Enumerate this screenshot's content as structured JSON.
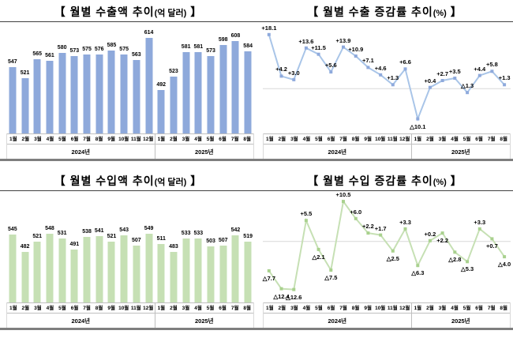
{
  "page": {
    "background": "#ffffff"
  },
  "chart_data": [
    {
      "id": "export-amount",
      "type": "bar",
      "title": "【 월별 수출액 추이(억 달러) 】",
      "title_main": "【 월별 수출액 추이",
      "title_unit": "(억 달러)",
      "title_close": " 】",
      "categories": [
        "1월",
        "2월",
        "3월",
        "4월",
        "5월",
        "6월",
        "7월",
        "8월",
        "9월",
        "10월",
        "11월",
        "12월",
        "1월",
        "2월",
        "3월",
        "4월",
        "5월",
        "6월",
        "7월",
        "8월"
      ],
      "year_groups": [
        {
          "label": "2024년",
          "count": 12
        },
        {
          "label": "2025년",
          "count": 8
        }
      ],
      "values": [
        547,
        521,
        565,
        561,
        580,
        573,
        575,
        576,
        585,
        575,
        563,
        614,
        492,
        523,
        581,
        581,
        573,
        598,
        608,
        584
      ],
      "value_labels": [
        "547",
        "521",
        "565",
        "561",
        "580",
        "573",
        "575",
        "576",
        "585",
        "575",
        "563",
        "614",
        "492",
        "523",
        "581",
        "581",
        "573",
        "598",
        "608",
        "584"
      ],
      "bar_color": "#8EA9DB",
      "ylim": [
        390,
        650
      ],
      "grid": false
    },
    {
      "id": "export-growth",
      "type": "line",
      "title": "【 월별 수출 증감률 추이(%) 】",
      "title_main": "【 월별 수출 증감률 추이",
      "title_unit": "(%)",
      "title_close": " 】",
      "categories": [
        "1월",
        "2월",
        "3월",
        "4월",
        "5월",
        "6월",
        "7월",
        "8월",
        "9월",
        "10월",
        "11월",
        "12월",
        "1월",
        "2월",
        "3월",
        "4월",
        "5월",
        "6월",
        "7월",
        "8월"
      ],
      "year_groups": [
        {
          "label": "2024년",
          "count": 12
        },
        {
          "label": "2025년",
          "count": 8
        }
      ],
      "values": [
        18.1,
        4.2,
        3.0,
        13.6,
        11.5,
        5.6,
        13.9,
        10.9,
        7.1,
        4.6,
        1.3,
        6.6,
        -10.1,
        0.4,
        2.7,
        3.5,
        -1.3,
        4.4,
        5.8,
        1.3
      ],
      "value_labels": [
        "+18.1",
        "+4.2",
        "+3.0",
        "+13.6",
        "+11.5",
        "+5.6",
        "+13.9",
        "+10.9",
        "+7.1",
        "+4.6",
        "+1.3",
        "+6.6",
        "△10.1",
        "+0.4",
        "+2.7",
        "+3.5",
        "△1.3",
        "+4.4",
        "+5.8",
        "+1.3"
      ],
      "label_below": [
        12
      ],
      "line_color": "#A9C5E8",
      "marker_color": "#8FAADC",
      "zero_line": true,
      "zero_line_color": "#D9D9D9",
      "ylim": [
        -15,
        22
      ],
      "grid": false
    },
    {
      "id": "import-amount",
      "type": "bar",
      "title": "【 월별 수입액 추이(억 달러) 】",
      "title_main": "【 월별 수입액 추이",
      "title_unit": "(억 달러)",
      "title_close": " 】",
      "categories": [
        "1월",
        "2월",
        "3월",
        "4월",
        "5월",
        "6월",
        "7월",
        "8월",
        "9월",
        "10월",
        "11월",
        "12월",
        "1월",
        "2월",
        "3월",
        "4월",
        "5월",
        "6월",
        "7월",
        "8월"
      ],
      "year_groups": [
        {
          "label": "2024년",
          "count": 12
        },
        {
          "label": "2025년",
          "count": 8
        }
      ],
      "values": [
        545,
        482,
        521,
        548,
        531,
        491,
        538,
        541,
        521,
        543,
        507,
        549,
        511,
        483,
        533,
        533,
        503,
        507,
        542,
        519
      ],
      "value_labels": [
        "545",
        "482",
        "521",
        "548",
        "531",
        "491",
        "538",
        "541",
        "521",
        "543",
        "507",
        "549",
        "511",
        "483",
        "533",
        "533",
        "503",
        "507",
        "542",
        "519"
      ],
      "bar_color": "#C6E0B4",
      "ylim": [
        300,
        700
      ],
      "grid": false
    },
    {
      "id": "import-growth",
      "type": "line",
      "title": "【 월별 수입 증감률 추이(%) 】",
      "title_main": "【 월별 수입 증감률 추이",
      "title_unit": "(%)",
      "title_close": " 】",
      "categories": [
        "1월",
        "2월",
        "3월",
        "4월",
        "5월",
        "6월",
        "7월",
        "8월",
        "9월",
        "10월",
        "11월",
        "12월",
        "1월",
        "2월",
        "3월",
        "4월",
        "5월",
        "6월",
        "7월",
        "8월"
      ],
      "year_groups": [
        {
          "label": "2024년",
          "count": 12
        },
        {
          "label": "2025년",
          "count": 8
        }
      ],
      "values": [
        -7.7,
        -12.4,
        -12.6,
        5.5,
        -2.1,
        -7.5,
        10.5,
        6.0,
        2.2,
        1.7,
        -2.5,
        3.3,
        -6.3,
        0.2,
        2.2,
        -2.8,
        -5.3,
        3.3,
        0.7,
        -4.0
      ],
      "value_labels": [
        "△7.7",
        "△12.4",
        "△12.6",
        "+5.5",
        "△2.1",
        "△7.5",
        "+10.5",
        "+6.0",
        "+2.2",
        "+1.7",
        "△2.5",
        "+3.3",
        "△6.3",
        "+0.2",
        "+2.2",
        "△2.8",
        "△5.3",
        "+3.3",
        "+0.7",
        "△4.0"
      ],
      "label_below": [
        0,
        1,
        2,
        4,
        5,
        10,
        12,
        14,
        15,
        16,
        18,
        19
      ],
      "line_color": "#C6E0B4",
      "marker_color": "#A9D18E",
      "zero_line": true,
      "zero_line_color": "#D9D9D9",
      "ylim": [
        -16,
        13
      ],
      "grid": false
    }
  ]
}
